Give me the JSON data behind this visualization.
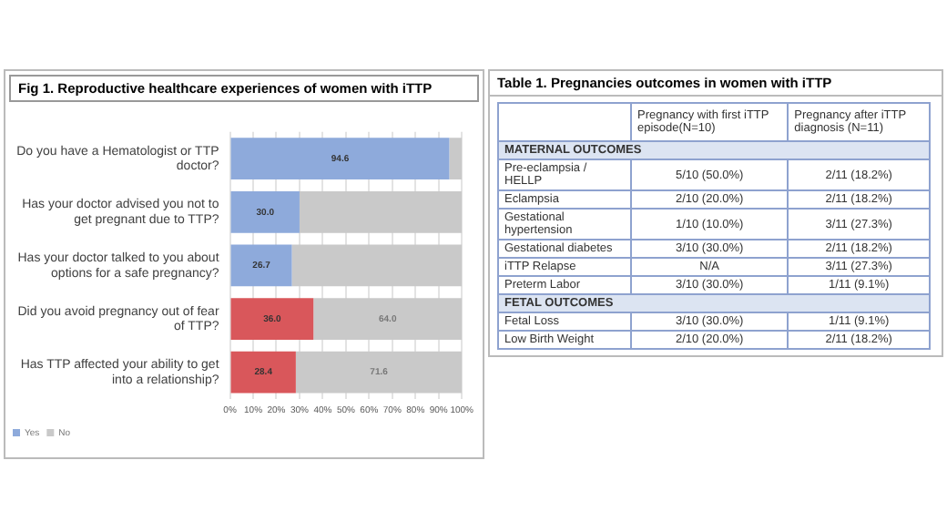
{
  "chart_data": [
    {
      "type": "bar",
      "orientation": "horizontal",
      "stacked": true,
      "title": "Fig 1. Reproductive healthcare experiences of women with iTTP",
      "categories": [
        "Do you have a Hematologist or TTP doctor?",
        "Has your doctor advised you not to get pregnant due to TTP?",
        "Has your doctor talked to you about options for a safe pregnancy?",
        "Did you avoid pregnancy out of fear of TTP?",
        "Has TTP affected your ability to get into a relationship?"
      ],
      "series": [
        {
          "name": "Yes",
          "colors": [
            "#8eaadb",
            "#8eaadb",
            "#8eaadb",
            "#d9575b",
            "#d9575b"
          ],
          "values": [
            94.6,
            30.0,
            26.7,
            36.0,
            28.4
          ],
          "value_labels": [
            "94.6",
            "30.0",
            "26.7",
            "36.0",
            "28.4"
          ]
        },
        {
          "name": "No",
          "color": "#c9c9c9",
          "values": [
            5.4,
            70.0,
            73.3,
            64.0,
            71.6
          ],
          "value_labels": [
            null,
            null,
            null,
            "64.0",
            "71.6"
          ]
        }
      ],
      "xlim": [
        0,
        100
      ],
      "xticks": [
        {
          "value": 0,
          "label": "0%"
        },
        {
          "value": 10,
          "label": "10%"
        },
        {
          "value": 20,
          "label": "20%"
        },
        {
          "value": 30,
          "label": "30%"
        },
        {
          "value": 40,
          "label": "40%"
        },
        {
          "value": 50,
          "label": "50%"
        },
        {
          "value": 60,
          "label": "60%"
        },
        {
          "value": 70,
          "label": "70%"
        },
        {
          "value": 80,
          "label": "80%"
        },
        {
          "value": 90,
          "label": "90%"
        },
        {
          "value": 100,
          "label": "100%"
        }
      ],
      "grid": "x",
      "legend": "bottom left"
    },
    {
      "type": "other",
      "title": "Table 1. Pregnancies outcomes in women with iTTP",
      "categories": [
        "Pregnancy with first iTTP episode(N=10)",
        "Pregnancy after iTTP diagnosis (N=11)"
      ],
      "y_categories": [
        "MATERNAL OUTCOMES",
        "Pre-eclampsia / HELLP",
        "Eclampsia",
        "Gestational hypertension",
        "Gestational diabetes",
        "iTTP Relapse",
        "Preterm Labor",
        "FETAL OUTCOMES",
        "Fetal Loss",
        "Low Birth Weight"
      ],
      "cell_labels": [
        [
          null,
          null
        ],
        [
          "5/10 (50.0%)",
          "2/11 (18.2%)"
        ],
        [
          "2/10 (20.0%)",
          "2/11 (18.2%)"
        ],
        [
          "1/10 (10.0%)",
          "3/11 (27.3%)"
        ],
        [
          "3/10 (30.0%)",
          "2/11 (18.2%)"
        ],
        [
          "N/A",
          "3/11 (27.3%)"
        ],
        [
          "3/10 (30.0%)",
          "1/11 (9.1%)"
        ],
        [
          null,
          null
        ],
        [
          "3/10 (30.0%)",
          "1/11 (9.1%)"
        ],
        [
          "2/10 (20.0%)",
          "2/11 (18.2%)"
        ]
      ]
    }
  ]
}
